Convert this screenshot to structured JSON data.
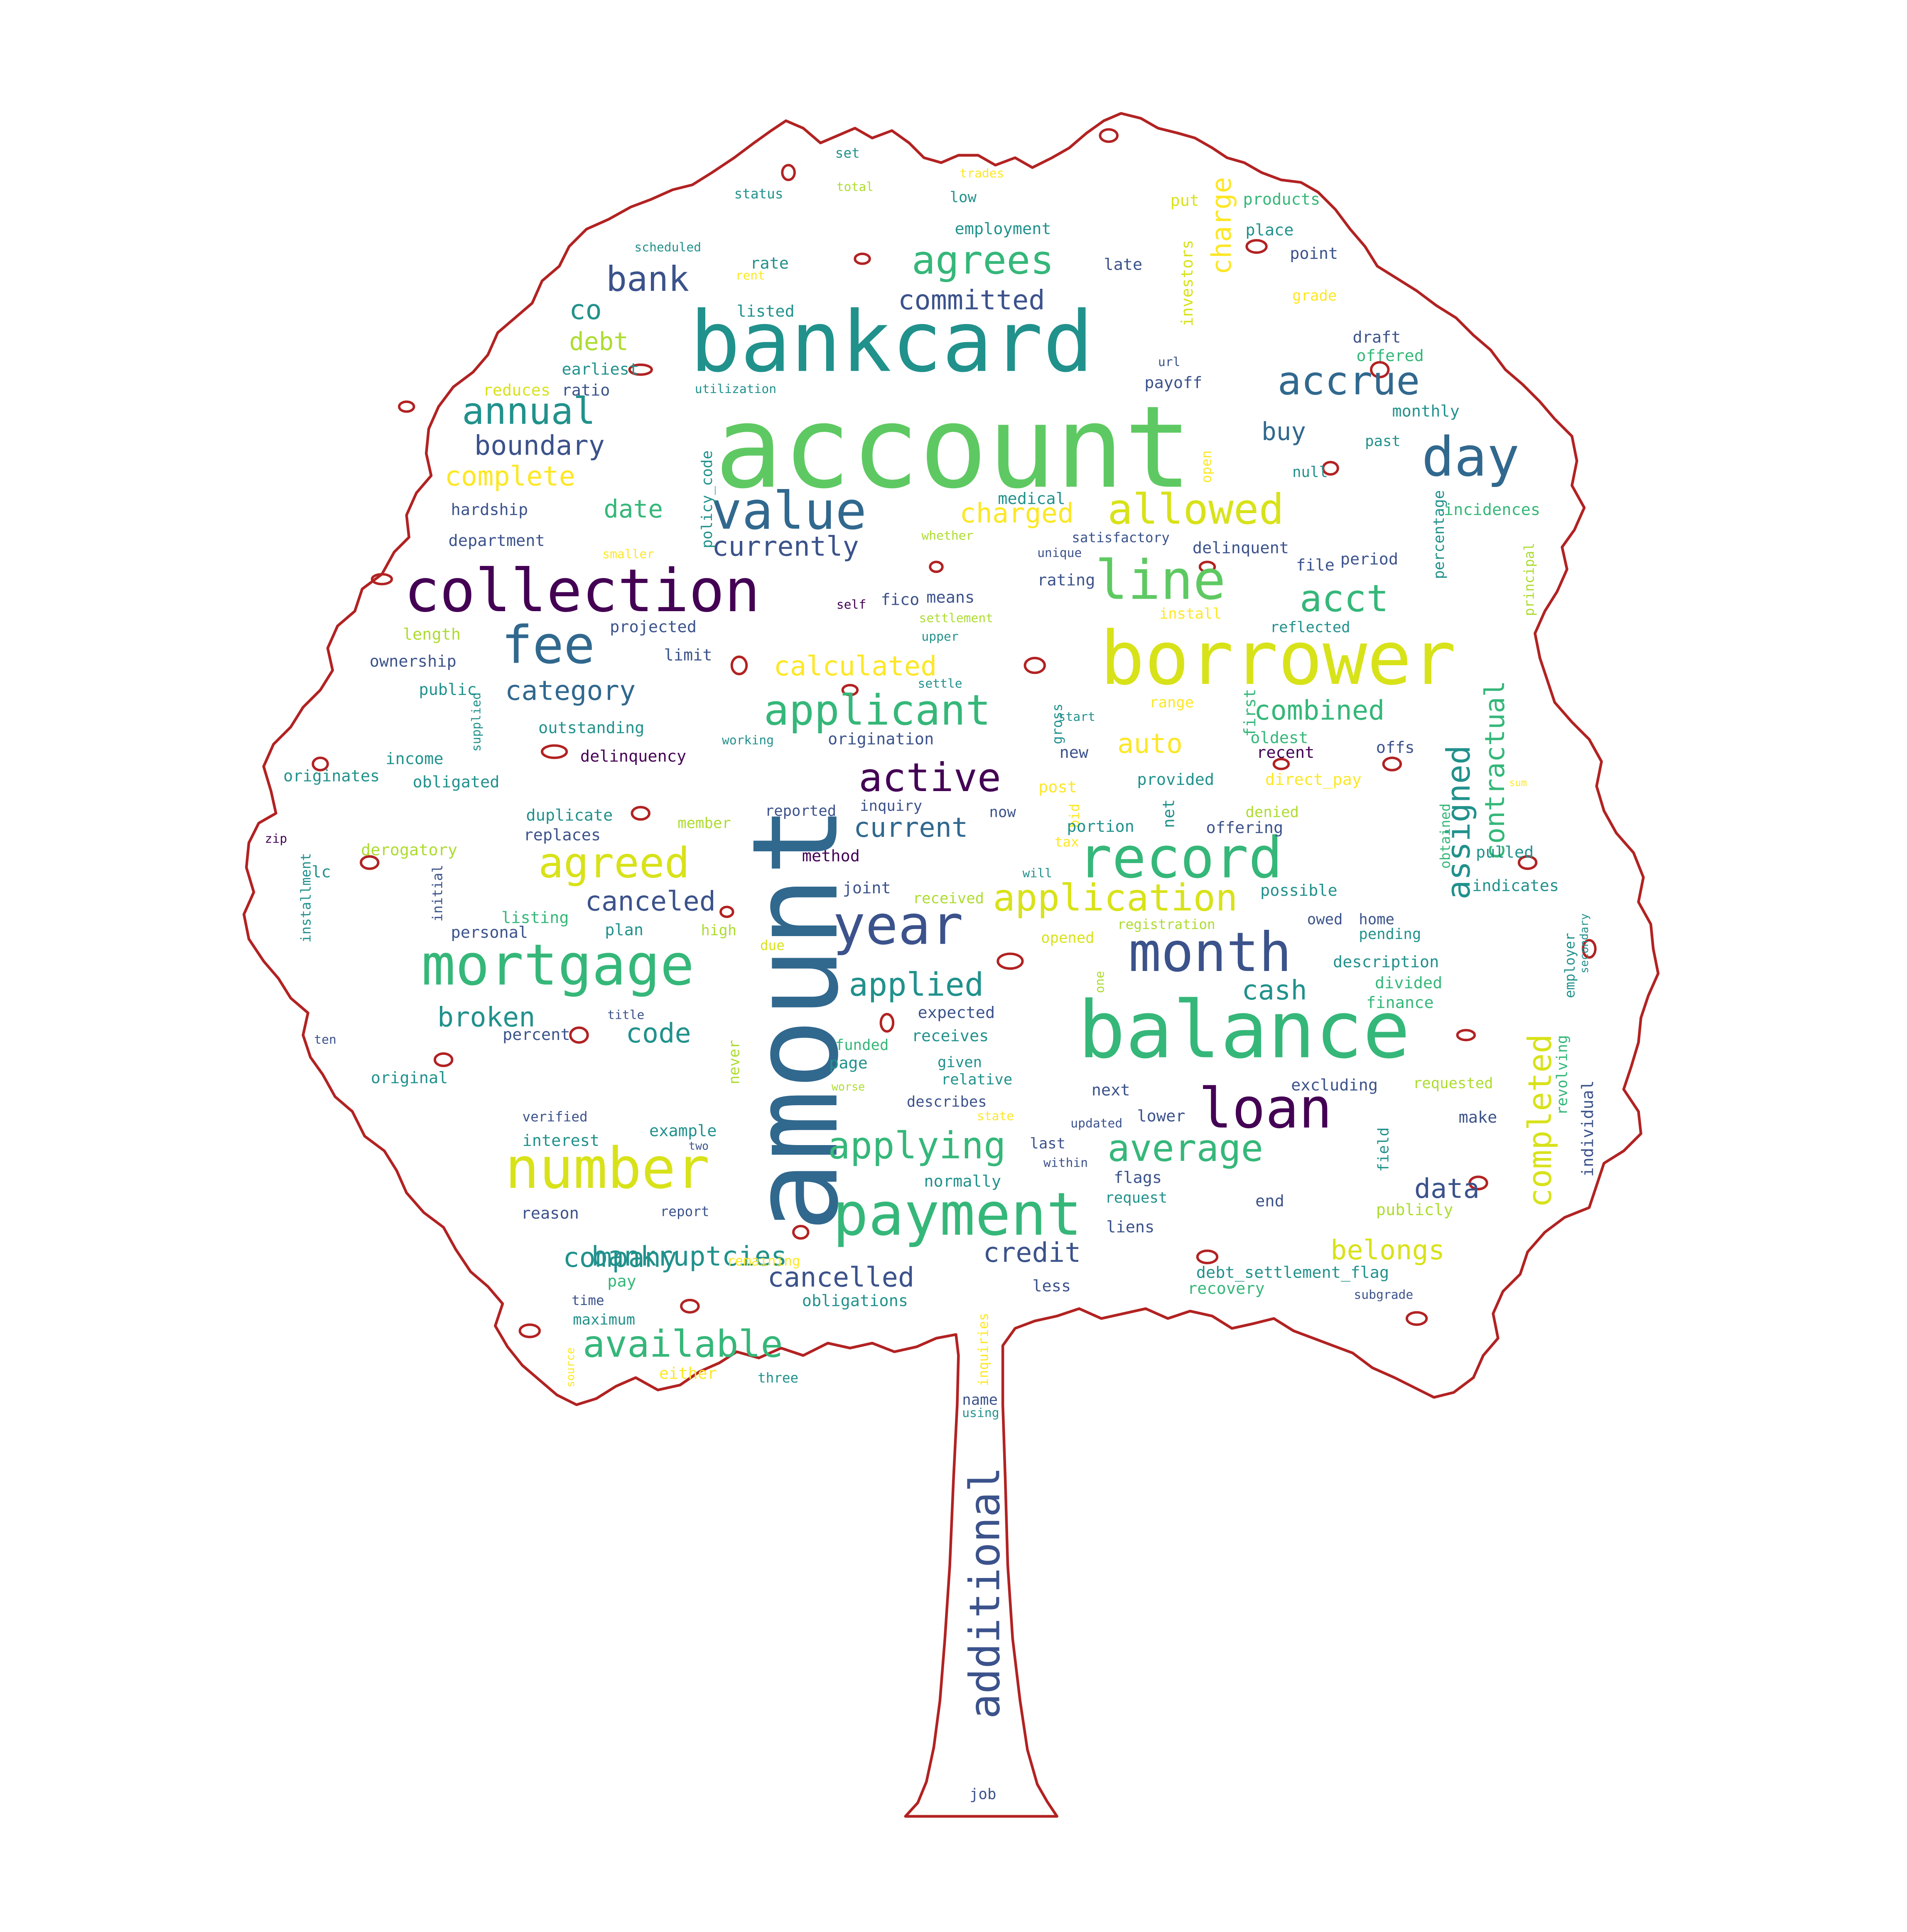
{
  "palette": {
    "outline": "#b22222",
    "purple": "#440154",
    "indigo": "#3b528b",
    "blue": "#31688e",
    "teal": "#21918c",
    "seagreen": "#35b779",
    "green": "#5ec962",
    "lime": "#addc30",
    "yellow": "#d8e219",
    "gold": "#fde725"
  },
  "words": [
    {
      "text": "account",
      "color": "green",
      "rot": 0
    },
    {
      "text": "amount",
      "color": "blue",
      "rot": 270
    },
    {
      "text": "bankcard",
      "color": "teal",
      "rot": 0
    },
    {
      "text": "balance",
      "color": "seagreen",
      "rot": 0
    },
    {
      "text": "borrower",
      "color": "yellow",
      "rot": 0
    },
    {
      "text": "collection",
      "color": "purple",
      "rot": 0
    },
    {
      "text": "loan",
      "color": "purple",
      "rot": 0
    },
    {
      "text": "payment",
      "color": "seagreen",
      "rot": 0
    },
    {
      "text": "mortgage",
      "color": "seagreen",
      "rot": 0
    },
    {
      "text": "year",
      "color": "indigo",
      "rot": 0
    },
    {
      "text": "month",
      "color": "indigo",
      "rot": 0
    },
    {
      "text": "record",
      "color": "seagreen",
      "rot": 0
    },
    {
      "text": "number",
      "color": "yellow",
      "rot": 0
    },
    {
      "text": "value",
      "color": "blue",
      "rot": 0
    },
    {
      "text": "fee",
      "color": "blue",
      "rot": 0
    },
    {
      "text": "line",
      "color": "green",
      "rot": 0
    },
    {
      "text": "day",
      "color": "blue",
      "rot": 0
    },
    {
      "text": "additional",
      "color": "indigo",
      "rot": 270
    },
    {
      "text": "applicant",
      "color": "seagreen",
      "rot": 0
    },
    {
      "text": "allowed",
      "color": "yellow",
      "rot": 0
    },
    {
      "text": "agreed",
      "color": "yellow",
      "rot": 0
    },
    {
      "text": "agrees",
      "color": "seagreen",
      "rot": 0
    },
    {
      "text": "accrue",
      "color": "blue",
      "rot": 0
    },
    {
      "text": "acct",
      "color": "seagreen",
      "rot": 0
    },
    {
      "text": "active",
      "color": "purple",
      "rot": 0
    },
    {
      "text": "application",
      "color": "yellow",
      "rot": 0
    },
    {
      "text": "applying",
      "color": "seagreen",
      "rot": 0
    },
    {
      "text": "average",
      "color": "seagreen",
      "rot": 0
    },
    {
      "text": "available",
      "color": "seagreen",
      "rot": 0
    },
    {
      "text": "annual",
      "color": "teal",
      "rot": 0
    },
    {
      "text": "bank",
      "color": "indigo",
      "rot": 0
    },
    {
      "text": "assigned",
      "color": "teal",
      "rot": 270
    },
    {
      "text": "completed",
      "color": "yellow",
      "rot": 270
    },
    {
      "text": "contractual",
      "color": "seagreen",
      "rot": 270
    },
    {
      "text": "applied",
      "color": "teal",
      "rot": 0
    },
    {
      "text": "current",
      "color": "blue",
      "rot": 0
    },
    {
      "text": "canceled",
      "color": "indigo",
      "rot": 0
    },
    {
      "text": "cancelled",
      "color": "indigo",
      "rot": 0
    },
    {
      "text": "calculated",
      "color": "gold",
      "rot": 0
    },
    {
      "text": "category",
      "color": "blue",
      "rot": 0
    },
    {
      "text": "combined",
      "color": "seagreen",
      "rot": 0
    },
    {
      "text": "auto",
      "color": "gold",
      "rot": 0
    },
    {
      "text": "belongs",
      "color": "yellow",
      "rot": 0
    },
    {
      "text": "bankruptcies",
      "color": "teal",
      "rot": 0
    },
    {
      "text": "company",
      "color": "teal",
      "rot": 0
    },
    {
      "text": "credit",
      "color": "indigo",
      "rot": 0
    },
    {
      "text": "data",
      "color": "indigo",
      "rot": 0
    },
    {
      "text": "code",
      "color": "teal",
      "rot": 0
    },
    {
      "text": "broken",
      "color": "teal",
      "rot": 0
    },
    {
      "text": "cash",
      "color": "teal",
      "rot": 0
    },
    {
      "text": "committed",
      "color": "indigo",
      "rot": 0
    },
    {
      "text": "currently",
      "color": "indigo",
      "rot": 0
    },
    {
      "text": "charged",
      "color": "gold",
      "rot": 0
    },
    {
      "text": "charge",
      "color": "gold",
      "rot": 270
    },
    {
      "text": "complete",
      "color": "gold",
      "rot": 0
    },
    {
      "text": "boundary",
      "color": "indigo",
      "rot": 0
    },
    {
      "text": "debt",
      "color": "lime",
      "rot": 0
    },
    {
      "text": "co",
      "color": "teal",
      "rot": 0
    },
    {
      "text": "date",
      "color": "seagreen",
      "rot": 0
    },
    {
      "text": "buy",
      "color": "blue",
      "rot": 0
    },
    {
      "text": "set",
      "color": "teal",
      "rot": 0
    },
    {
      "text": "trades",
      "color": "gold",
      "rot": 0
    },
    {
      "text": "status",
      "color": "teal",
      "rot": 0
    },
    {
      "text": "total",
      "color": "lime",
      "rot": 0
    },
    {
      "text": "low",
      "color": "teal",
      "rot": 0
    },
    {
      "text": "put",
      "color": "yellow",
      "rot": 0
    },
    {
      "text": "products",
      "color": "seagreen",
      "rot": 0
    },
    {
      "text": "employment",
      "color": "teal",
      "rot": 0
    },
    {
      "text": "place",
      "color": "teal",
      "rot": 0
    },
    {
      "text": "scheduled",
      "color": "teal",
      "rot": 0
    },
    {
      "text": "rate",
      "color": "teal",
      "rot": 0
    },
    {
      "text": "rent",
      "color": "gold",
      "rot": 0
    },
    {
      "text": "late",
      "color": "indigo",
      "rot": 0
    },
    {
      "text": "investors",
      "color": "yellow",
      "rot": 270
    },
    {
      "text": "point",
      "color": "indigo",
      "rot": 0
    },
    {
      "text": "grade",
      "color": "gold",
      "rot": 0
    },
    {
      "text": "listed",
      "color": "teal",
      "rot": 0
    },
    {
      "text": "draft",
      "color": "indigo",
      "rot": 0
    },
    {
      "text": "offered",
      "color": "seagreen",
      "rot": 0
    },
    {
      "text": "earliest",
      "color": "teal",
      "rot": 0
    },
    {
      "text": "url",
      "color": "indigo",
      "rot": 0
    },
    {
      "text": "reduces",
      "color": "yellow",
      "rot": 0
    },
    {
      "text": "ratio",
      "color": "indigo",
      "rot": 0
    },
    {
      "text": "utilization",
      "color": "teal",
      "rot": 0
    },
    {
      "text": "payoff",
      "color": "indigo",
      "rot": 0
    },
    {
      "text": "monthly",
      "color": "teal",
      "rot": 0
    },
    {
      "text": "policy_code",
      "color": "teal",
      "rot": 270
    },
    {
      "text": "open",
      "color": "gold",
      "rot": 270
    },
    {
      "text": "past",
      "color": "teal",
      "rot": 0
    },
    {
      "text": "null",
      "color": "teal",
      "rot": 0
    },
    {
      "text": "hardship",
      "color": "indigo",
      "rot": 0
    },
    {
      "text": "medical",
      "color": "teal",
      "rot": 0
    },
    {
      "text": "incidences",
      "color": "seagreen",
      "rot": 0
    },
    {
      "text": "department",
      "color": "indigo",
      "rot": 0
    },
    {
      "text": "whether",
      "color": "lime",
      "rot": 0
    },
    {
      "text": "satisfactory",
      "color": "indigo",
      "rot": 0
    },
    {
      "text": "delinquent",
      "color": "indigo",
      "rot": 0
    },
    {
      "text": "percentage",
      "color": "teal",
      "rot": 270
    },
    {
      "text": "principal",
      "color": "lime",
      "rot": 270
    },
    {
      "text": "smaller",
      "color": "gold",
      "rot": 0
    },
    {
      "text": "unique",
      "color": "indigo",
      "rot": 0
    },
    {
      "text": "file",
      "color": "indigo",
      "rot": 0
    },
    {
      "text": "period",
      "color": "indigo",
      "rot": 0
    },
    {
      "text": "rating",
      "color": "indigo",
      "rot": 0
    },
    {
      "text": "means",
      "color": "indigo",
      "rot": 0
    },
    {
      "text": "fico",
      "color": "indigo",
      "rot": 0
    },
    {
      "text": "self",
      "color": "purple",
      "rot": 0
    },
    {
      "text": "settlement",
      "color": "lime",
      "rot": 0
    },
    {
      "text": "install",
      "color": "gold",
      "rot": 0
    },
    {
      "text": "reflected",
      "color": "teal",
      "rot": 0
    },
    {
      "text": "projected",
      "color": "indigo",
      "rot": 0
    },
    {
      "text": "length",
      "color": "lime",
      "rot": 0
    },
    {
      "text": "upper",
      "color": "teal",
      "rot": 0
    },
    {
      "text": "limit",
      "color": "indigo",
      "rot": 0
    },
    {
      "text": "ownership",
      "color": "indigo",
      "rot": 0
    },
    {
      "text": "public",
      "color": "teal",
      "rot": 0
    },
    {
      "text": "supplied",
      "color": "teal",
      "rot": 270
    },
    {
      "text": "settle",
      "color": "teal",
      "rot": 0
    },
    {
      "text": "range",
      "color": "gold",
      "rot": 0
    },
    {
      "text": "first",
      "color": "seagreen",
      "rot": 270
    },
    {
      "text": "gross",
      "color": "teal",
      "rot": 270
    },
    {
      "text": "start",
      "color": "teal",
      "rot": 0
    },
    {
      "text": "oldest",
      "color": "seagreen",
      "rot": 0
    },
    {
      "text": "outstanding",
      "color": "teal",
      "rot": 0
    },
    {
      "text": "working",
      "color": "teal",
      "rot": 0
    },
    {
      "text": "origination",
      "color": "indigo",
      "rot": 0
    },
    {
      "text": "offs",
      "color": "indigo",
      "rot": 0
    },
    {
      "text": "income",
      "color": "teal",
      "rot": 0
    },
    {
      "text": "delinquency",
      "color": "purple",
      "rot": 0
    },
    {
      "text": "new",
      "color": "indigo",
      "rot": 0
    },
    {
      "text": "recent",
      "color": "purple",
      "rot": 0
    },
    {
      "text": "originates",
      "color": "teal",
      "rot": 0
    },
    {
      "text": "obligated",
      "color": "teal",
      "rot": 0
    },
    {
      "text": "post",
      "color": "gold",
      "rot": 0
    },
    {
      "text": "provided",
      "color": "teal",
      "rot": 0
    },
    {
      "text": "direct_pay",
      "color": "gold",
      "rot": 0
    },
    {
      "text": "sum",
      "color": "gold",
      "rot": 0
    },
    {
      "text": "duplicate",
      "color": "teal",
      "rot": 0
    },
    {
      "text": "member",
      "color": "lime",
      "rot": 0
    },
    {
      "text": "reported",
      "color": "indigo",
      "rot": 0
    },
    {
      "text": "inquiry",
      "color": "indigo",
      "rot": 0
    },
    {
      "text": "now",
      "color": "indigo",
      "rot": 0
    },
    {
      "text": "bid",
      "color": "gold",
      "rot": 270
    },
    {
      "text": "net",
      "color": "teal",
      "rot": 270
    },
    {
      "text": "offering",
      "color": "indigo",
      "rot": 0
    },
    {
      "text": "denied",
      "color": "lime",
      "rot": 0
    },
    {
      "text": "zip",
      "color": "purple",
      "rot": 0
    },
    {
      "text": "replaces",
      "color": "indigo",
      "rot": 0
    },
    {
      "text": "portion",
      "color": "teal",
      "rot": 0
    },
    {
      "text": "tax",
      "color": "gold",
      "rot": 0
    },
    {
      "text": "pulled",
      "color": "teal",
      "rot": 0
    },
    {
      "text": "derogatory",
      "color": "lime",
      "rot": 0
    },
    {
      "text": "method",
      "color": "purple",
      "rot": 0
    },
    {
      "text": "obtained",
      "color": "seagreen",
      "rot": 270
    },
    {
      "text": "lc",
      "color": "teal",
      "rot": 0
    },
    {
      "text": "will",
      "color": "teal",
      "rot": 0
    },
    {
      "text": "indicates",
      "color": "teal",
      "rot": 0
    },
    {
      "text": "installment",
      "color": "teal",
      "rot": 270
    },
    {
      "text": "initial",
      "color": "indigo",
      "rot": 270
    },
    {
      "text": "joint",
      "color": "indigo",
      "rot": 0
    },
    {
      "text": "received",
      "color": "lime",
      "rot": 0
    },
    {
      "text": "possible",
      "color": "teal",
      "rot": 0
    },
    {
      "text": "listing",
      "color": "seagreen",
      "rot": 0
    },
    {
      "text": "registration",
      "color": "lime",
      "rot": 0
    },
    {
      "text": "owed",
      "color": "indigo",
      "rot": 0
    },
    {
      "text": "home",
      "color": "indigo",
      "rot": 0
    },
    {
      "text": "personal",
      "color": "indigo",
      "rot": 0
    },
    {
      "text": "high",
      "color": "lime",
      "rot": 0
    },
    {
      "text": "plan",
      "color": "teal",
      "rot": 0
    },
    {
      "text": "pending",
      "color": "teal",
      "rot": 0
    },
    {
      "text": "secondary",
      "color": "teal",
      "rot": 270
    },
    {
      "text": "employer",
      "color": "teal",
      "rot": 270
    },
    {
      "text": "due",
      "color": "yellow",
      "rot": 0
    },
    {
      "text": "opened",
      "color": "yellow",
      "rot": 0
    },
    {
      "text": "description",
      "color": "teal",
      "rot": 0
    },
    {
      "text": "one",
      "color": "lime",
      "rot": 270
    },
    {
      "text": "divided",
      "color": "seagreen",
      "rot": 0
    },
    {
      "text": "finance",
      "color": "seagreen",
      "rot": 0
    },
    {
      "text": "title",
      "color": "indigo",
      "rot": 0
    },
    {
      "text": "expected",
      "color": "indigo",
      "rot": 0
    },
    {
      "text": "ten",
      "color": "indigo",
      "rot": 0
    },
    {
      "text": "percent",
      "color": "indigo",
      "rot": 0
    },
    {
      "text": "receives",
      "color": "teal",
      "rot": 0
    },
    {
      "text": "funded",
      "color": "seagreen",
      "rot": 0
    },
    {
      "text": "given",
      "color": "teal",
      "rot": 0
    },
    {
      "text": "never",
      "color": "lime",
      "rot": 270
    },
    {
      "text": "page",
      "color": "teal",
      "rot": 0
    },
    {
      "text": "relative",
      "color": "teal",
      "rot": 0
    },
    {
      "text": "original",
      "color": "teal",
      "rot": 0
    },
    {
      "text": "worse",
      "color": "lime",
      "rot": 0
    },
    {
      "text": "next",
      "color": "indigo",
      "rot": 0
    },
    {
      "text": "excluding",
      "color": "indigo",
      "rot": 0
    },
    {
      "text": "requested",
      "color": "lime",
      "rot": 0
    },
    {
      "text": "revolving",
      "color": "seagreen",
      "rot": 270
    },
    {
      "text": "individual",
      "color": "indigo",
      "rot": 270
    },
    {
      "text": "verified",
      "color": "indigo",
      "rot": 0
    },
    {
      "text": "describes",
      "color": "indigo",
      "rot": 0
    },
    {
      "text": "state",
      "color": "gold",
      "rot": 0
    },
    {
      "text": "updated",
      "color": "indigo",
      "rot": 0
    },
    {
      "text": "lower",
      "color": "indigo",
      "rot": 0
    },
    {
      "text": "make",
      "color": "indigo",
      "rot": 0
    },
    {
      "text": "example",
      "color": "teal",
      "rot": 0
    },
    {
      "text": "interest",
      "color": "teal",
      "rot": 0
    },
    {
      "text": "two",
      "color": "indigo",
      "rot": 0
    },
    {
      "text": "last",
      "color": "indigo",
      "rot": 0
    },
    {
      "text": "field",
      "color": "teal",
      "rot": 270
    },
    {
      "text": "within",
      "color": "indigo",
      "rot": 0
    },
    {
      "text": "flags",
      "color": "indigo",
      "rot": 0
    },
    {
      "text": "normally",
      "color": "teal",
      "rot": 0
    },
    {
      "text": "request",
      "color": "teal",
      "rot": 0
    },
    {
      "text": "end",
      "color": "indigo",
      "rot": 0
    },
    {
      "text": "reason",
      "color": "indigo",
      "rot": 0
    },
    {
      "text": "report",
      "color": "indigo",
      "rot": 0
    },
    {
      "text": "liens",
      "color": "indigo",
      "rot": 0
    },
    {
      "text": "publicly",
      "color": "lime",
      "rot": 0
    },
    {
      "text": "remaining",
      "color": "gold",
      "rot": 0
    },
    {
      "text": "debt_settlement_flag",
      "color": "teal",
      "rot": 0
    },
    {
      "text": "pay",
      "color": "seagreen",
      "rot": 0
    },
    {
      "text": "recovery",
      "color": "seagreen",
      "rot": 0
    },
    {
      "text": "less",
      "color": "indigo",
      "rot": 0
    },
    {
      "text": "time",
      "color": "indigo",
      "rot": 0
    },
    {
      "text": "obligations",
      "color": "teal",
      "rot": 0
    },
    {
      "text": "subgrade",
      "color": "indigo",
      "rot": 0
    },
    {
      "text": "maximum",
      "color": "teal",
      "rot": 0
    },
    {
      "text": "inquiries",
      "color": "gold",
      "rot": 270
    },
    {
      "text": "source",
      "color": "gold",
      "rot": 270
    },
    {
      "text": "either",
      "color": "gold",
      "rot": 0
    },
    {
      "text": "three",
      "color": "teal",
      "rot": 0
    },
    {
      "text": "name",
      "color": "indigo",
      "rot": 0
    },
    {
      "text": "using",
      "color": "teal",
      "rot": 0
    },
    {
      "text": "job",
      "color": "indigo",
      "rot": 0
    }
  ]
}
